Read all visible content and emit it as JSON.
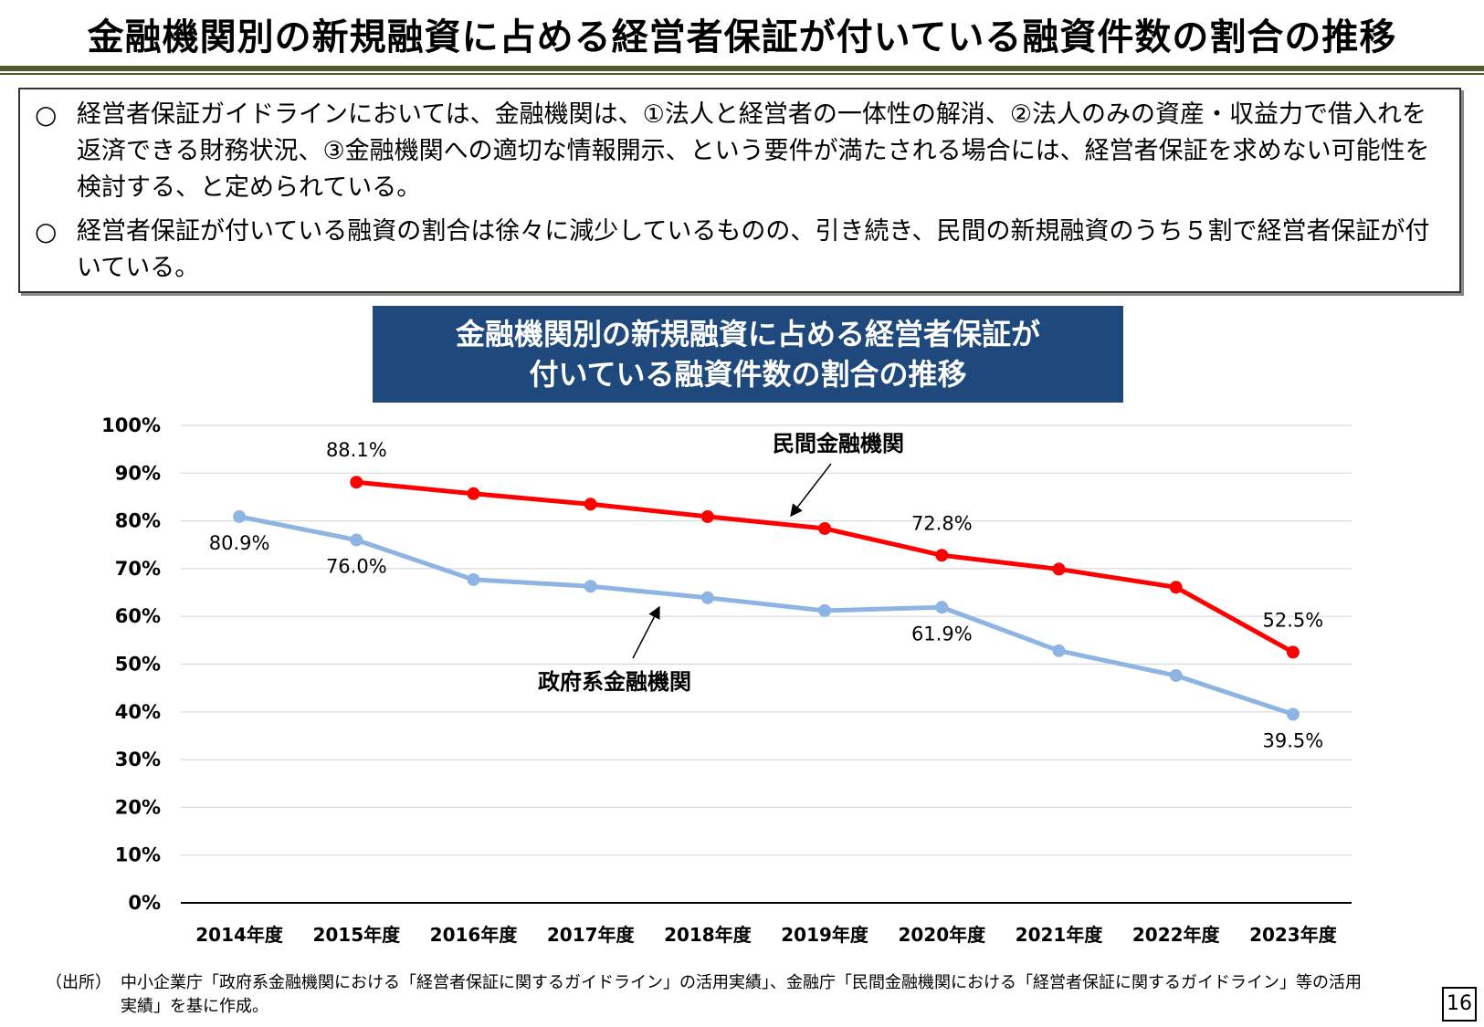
{
  "page": {
    "title": "金融機関別の新規融資に占める経営者保証が付いている融資件数の割合の推移",
    "page_number": "16"
  },
  "summary": {
    "bullet_mark": "○",
    "items": [
      "経営者保証ガイドラインにおいては、金融機関は、①法人と経営者の一体性の解消、②法人のみの資産・収益力で借入れを返済できる財務状況、③金融機関への適切な情報開示、という要件が満たされる場合には、経営者保証を求めない可能性を検討する、と定められている。",
      "経営者保証が付いている融資の割合は徐々に減少しているものの、引き続き、民間の新規融資のうち５割で経営者保証が付いている。"
    ]
  },
  "chart_heading": {
    "line1": "金融機関別の新規融資に占める経営者保証が",
    "line2": "付いている融資件数の割合の推移"
  },
  "chart_data": {
    "type": "line",
    "title": "金融機関別の新規融資に占める経営者保証が付いている融資件数の割合の推移",
    "categories": [
      "2014年度",
      "2015年度",
      "2016年度",
      "2017年度",
      "2018年度",
      "2019年度",
      "2020年度",
      "2021年度",
      "2022年度",
      "2023年度"
    ],
    "ylim": [
      0,
      100
    ],
    "yticks": [
      "0%",
      "10%",
      "20%",
      "30%",
      "40%",
      "50%",
      "60%",
      "70%",
      "80%",
      "90%",
      "100%"
    ],
    "grid": true,
    "legend": "none",
    "series": [
      {
        "name": "民間金融機関",
        "color": "#ff0000",
        "values": [
          null,
          88.1,
          85.7,
          83.5,
          80.9,
          78.4,
          72.8,
          69.9,
          66.1,
          52.5
        ],
        "labels": {
          "1": "88.1%",
          "6": "72.8%",
          "9": "52.5%"
        }
      },
      {
        "name": "政府系金融機関",
        "color": "#8eb4e3",
        "values": [
          80.9,
          76.0,
          67.7,
          66.3,
          63.9,
          61.2,
          61.9,
          52.8,
          47.6,
          39.5
        ],
        "labels": {
          "0": "80.9%",
          "1": "76.0%",
          "6": "61.9%",
          "9": "39.5%"
        }
      }
    ]
  },
  "source": {
    "lead": "（出所）",
    "line1": "中小企業庁「政府系金融機関における「経営者保証に関するガイドライン」の活用実績」、金融庁「民間金融機関における「経営者保証に関するガイドライン」等の活用",
    "line2": "実績」を基に作成。"
  }
}
